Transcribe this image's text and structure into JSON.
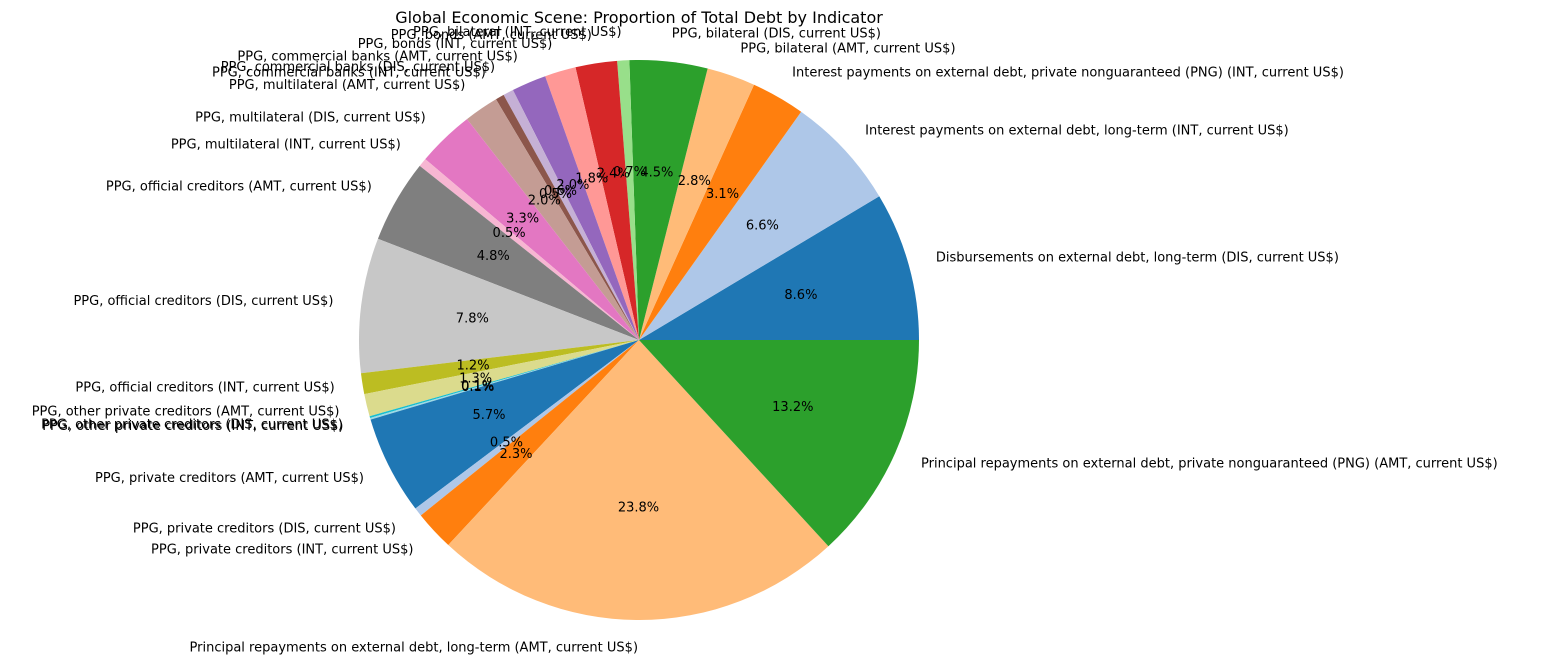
{
  "chart_data": {
    "type": "pie",
    "title": "Global Economic Scene: Proportion of Total Debt by Indicator",
    "start_angle_deg": 0,
    "direction": "counterclockwise",
    "slices": [
      {
        "label": "Disbursements on external debt, long-term (DIS, current US$)",
        "value": 8.6,
        "pct_text": "8.6%",
        "color": "#1f77b4"
      },
      {
        "label": "Interest payments on external debt, long-term (INT, current US$)",
        "value": 6.6,
        "pct_text": "6.6%",
        "color": "#aec7e8"
      },
      {
        "label": "Interest payments on external debt, private nonguaranteed (PNG) (INT, current US$)",
        "value": 3.1,
        "pct_text": "3.1%",
        "color": "#ff7f0e"
      },
      {
        "label": "PPG, bilateral (AMT, current US$)",
        "value": 2.8,
        "pct_text": "2.8%",
        "color": "#ffbb78"
      },
      {
        "label": "PPG, bilateral (DIS, current US$)",
        "value": 4.5,
        "pct_text": "4.5%",
        "color": "#2ca02c"
      },
      {
        "label": "PPG, bilateral (INT, current US$)",
        "value": 0.7,
        "pct_text": "0.7%",
        "color": "#98df8a"
      },
      {
        "label": "PPG, bonds (AMT, current US$)",
        "value": 2.4,
        "pct_text": "2.4%",
        "color": "#d62728"
      },
      {
        "label": "PPG, bonds (INT, current US$)",
        "value": 1.8,
        "pct_text": "1.8%",
        "color": "#ff9896"
      },
      {
        "label": "PPG, commercial banks (AMT, current US$)",
        "value": 2.0,
        "pct_text": "2.0%",
        "color": "#9467bd"
      },
      {
        "label": "PPG, commercial banks (DIS, current US$)",
        "value": 0.6,
        "pct_text": "0.6%",
        "color": "#c5b0d5"
      },
      {
        "label": "PPG, commercial banks (INT, current US$)",
        "value": 0.5,
        "pct_text": "0.5%",
        "color": "#8c564b"
      },
      {
        "label": "PPG, multilateral (AMT, current US$)",
        "value": 2.0,
        "pct_text": "2.0%",
        "color": "#c49c94"
      },
      {
        "label": "PPG, multilateral (DIS, current US$)",
        "value": 3.3,
        "pct_text": "3.3%",
        "color": "#e377c2"
      },
      {
        "label": "PPG, multilateral (INT, current US$)",
        "value": 0.5,
        "pct_text": "0.5%",
        "color": "#f7b6d2"
      },
      {
        "label": "PPG, official creditors (AMT, current US$)",
        "value": 4.8,
        "pct_text": "4.8%",
        "color": "#7f7f7f"
      },
      {
        "label": "PPG, official creditors (DIS, current US$)",
        "value": 7.8,
        "pct_text": "7.8%",
        "color": "#c7c7c7"
      },
      {
        "label": "PPG, official creditors (INT, current US$)",
        "value": 1.2,
        "pct_text": "1.2%",
        "color": "#bcbd22"
      },
      {
        "label": "PPG, other private creditors (AMT, current US$)",
        "value": 1.3,
        "pct_text": "1.3%",
        "color": "#dbdb8d"
      },
      {
        "label": "PPG, other private creditors (DIS, current US$)",
        "value": 0.1,
        "pct_text": "0.1%",
        "color": "#17becf"
      },
      {
        "label": "PPG, other private creditors (INT, current US$)",
        "value": 0.1,
        "pct_text": "0.1%",
        "color": "#9edae5"
      },
      {
        "label": "PPG, private creditors (AMT, current US$)",
        "value": 5.7,
        "pct_text": "5.7%",
        "color": "#1f77b4"
      },
      {
        "label": "PPG, private creditors (DIS, current US$)",
        "value": 0.5,
        "pct_text": "0.5%",
        "color": "#aec7e8"
      },
      {
        "label": "PPG, private creditors (INT, current US$)",
        "value": 2.3,
        "pct_text": "2.3%",
        "color": "#ff7f0e"
      },
      {
        "label": "Principal repayments on external debt, long-term (AMT, current US$)",
        "value": 23.8,
        "pct_text": "23.8%",
        "color": "#ffbb78"
      },
      {
        "label": "Principal repayments on external debt, private nonguaranteed (PNG) (AMT, current US$)",
        "value": 13.2,
        "pct_text": "13.2%",
        "color": "#2ca02c"
      }
    ]
  }
}
